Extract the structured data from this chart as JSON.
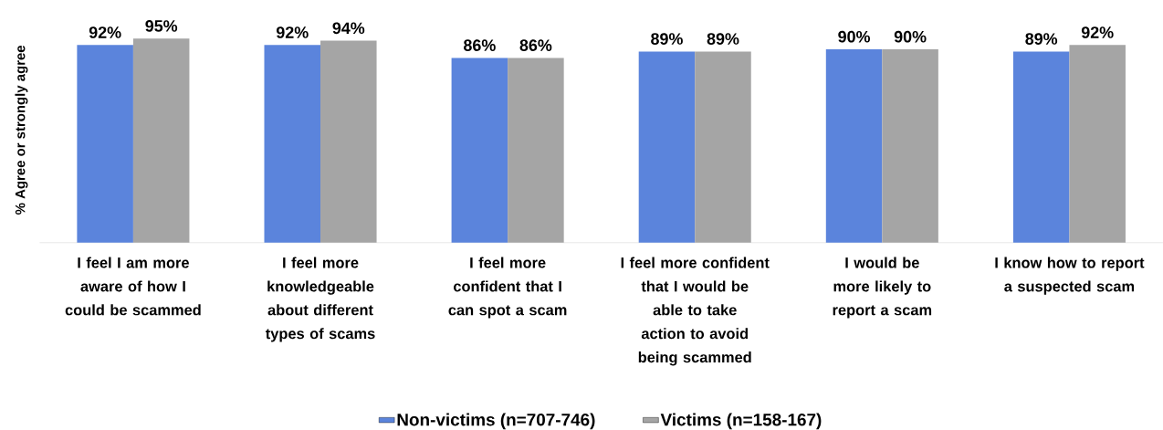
{
  "chart_data": {
    "type": "bar",
    "ylabel": "% Agree or strongly agree",
    "categories": [
      "I feel I am more aware of how I could be scammed",
      "I feel more knowledgeable about different types of scams",
      "I feel more confident that I can spot a scam",
      "I feel more confident that I would be able to take action to avoid being scammed",
      "I would be more likely to report a scam",
      "I know how to report a suspected scam"
    ],
    "series": [
      {
        "name": "Non-victims (n=707-746)",
        "color": "#5b84dc",
        "values": [
          92,
          92,
          86,
          89,
          90,
          89
        ],
        "value_labels": [
          "92%",
          "92%",
          "86%",
          "89%",
          "90%",
          "89%"
        ]
      },
      {
        "name": "Victims (n=158-167)",
        "color": "#a5a5a5",
        "values": [
          95,
          94,
          86,
          89,
          90,
          92
        ],
        "value_labels": [
          "95%",
          "94%",
          "86%",
          "89%",
          "90%",
          "92%"
        ]
      }
    ],
    "legend": "bottom"
  }
}
